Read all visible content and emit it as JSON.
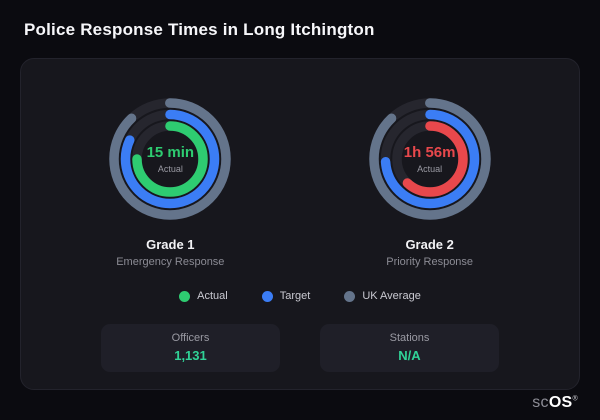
{
  "page": {
    "title": "Police Response Times in Long Itchington"
  },
  "colors": {
    "actual_good": "#2ecc71",
    "actual_bad": "#e8484c",
    "target": "#3b7df5",
    "uk_average": "#64748b",
    "track": "#26262e",
    "stat_value": "#30d397"
  },
  "chart_data": [
    {
      "type": "gauge",
      "name": "Grade 1",
      "subtitle": "Emergency Response",
      "value_label": "15 min",
      "value_sub": "Actual",
      "value_color_key": "actual_good",
      "rings": [
        {
          "name": "UK Average",
          "color_key": "uk_average",
          "percent": 88
        },
        {
          "name": "Target",
          "color_key": "target",
          "percent": 82
        },
        {
          "name": "Actual",
          "color_key": "actual_good",
          "percent": 75
        }
      ]
    },
    {
      "type": "gauge",
      "name": "Grade 2",
      "subtitle": "Priority Response",
      "value_label": "1h 56m",
      "value_sub": "Actual",
      "value_color_key": "actual_bad",
      "rings": [
        {
          "name": "UK Average",
          "color_key": "uk_average",
          "percent": 88
        },
        {
          "name": "Target",
          "color_key": "target",
          "percent": 74
        },
        {
          "name": "Actual",
          "color_key": "actual_bad",
          "percent": 62
        }
      ]
    }
  ],
  "legend": [
    {
      "label": "Actual",
      "color_key": "actual_good"
    },
    {
      "label": "Target",
      "color_key": "target"
    },
    {
      "label": "UK Average",
      "color_key": "uk_average"
    }
  ],
  "stats": [
    {
      "label": "Officers",
      "value": "1,131"
    },
    {
      "label": "Stations",
      "value": "N/A"
    }
  ],
  "brand": {
    "text_muted": "sc",
    "text_strong": "OS",
    "registered": "®"
  }
}
